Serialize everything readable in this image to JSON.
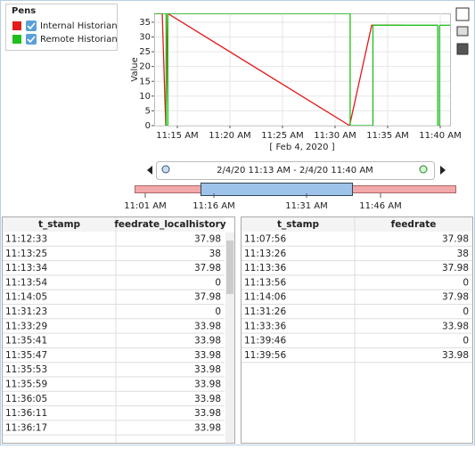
{
  "chart_data": {
    "type": "line",
    "y_label": "Value",
    "x_label": "[ Feb 4, 2020 ]",
    "xlim": [
      "11:12:48",
      "11:40:56"
    ],
    "xticks": [
      {
        "value": "11:15:00",
        "label": "11:15 AM"
      },
      {
        "value": "11:20:00",
        "label": "11:20 AM"
      },
      {
        "value": "11:25:00",
        "label": "11:25 AM"
      },
      {
        "value": "11:30:00",
        "label": "11:30 AM"
      },
      {
        "value": "11:35:00",
        "label": "11:35 AM"
      },
      {
        "value": "11:40:00",
        "label": "11:40 AM"
      }
    ],
    "ylim": [
      0,
      38
    ],
    "yticks": [
      0,
      5,
      10,
      15,
      20,
      25,
      30,
      35
    ],
    "grid": true,
    "legend_title": "Pens",
    "series": [
      {
        "name": "Internal Historian",
        "color": "#e31b1b",
        "step": false,
        "x": [
          "11:12:33",
          "11:13:25",
          "11:13:34",
          "11:13:54",
          "11:14:05",
          "11:31:23",
          "11:33:29",
          "11:35:41",
          "11:35:47",
          "11:35:53",
          "11:35:59",
          "11:36:05",
          "11:36:11",
          "11:36:17"
        ],
        "values": [
          37.98,
          38,
          37.98,
          0,
          37.98,
          0,
          33.98,
          33.98,
          33.98,
          33.98,
          33.98,
          33.98,
          33.98,
          33.98
        ]
      },
      {
        "name": "Remote Historian",
        "color": "#1fbf1f",
        "step": true,
        "x": [
          "11:07:56",
          "11:13:26",
          "11:13:36",
          "11:13:56",
          "11:14:06",
          "11:31:26",
          "11:33:36",
          "11:39:46",
          "11:39:56"
        ],
        "values": [
          37.98,
          38,
          37.98,
          0,
          37.98,
          0,
          33.98,
          0,
          33.98
        ]
      }
    ]
  },
  "range_selector": {
    "label": "2/4/20 11:13 AM - 2/4/20 11:40 AM",
    "ticks": [
      "11:01 AM",
      "11:16 AM",
      "11:31 AM",
      "11:46 AM"
    ]
  },
  "tables": [
    {
      "columns": [
        "t_stamp",
        "feedrate_localhistory"
      ]
    },
    {
      "columns": [
        "t_stamp",
        "feedrate"
      ]
    }
  ]
}
